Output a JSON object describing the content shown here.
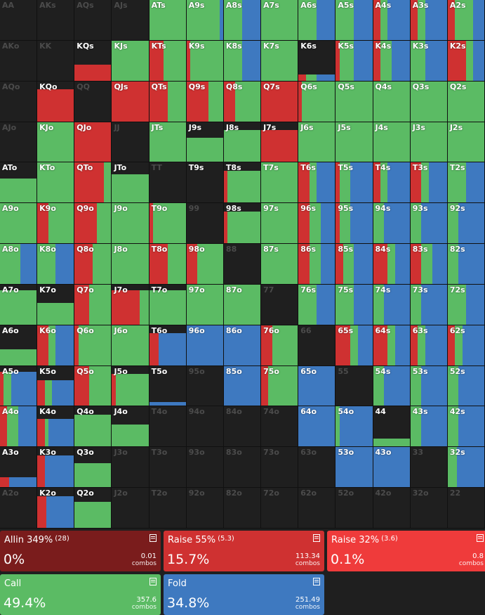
{
  "colors": {
    "allin": "#7a1c1c",
    "raise_big": "#cf3131",
    "raise_small": "#ef3b3b",
    "call": "#5bbb64",
    "fold": "#3e79c0",
    "empty": "#1f1f1f"
  },
  "hands": [
    [
      "AA",
      "AKs",
      "AQs",
      "AJs",
      "ATs",
      "A9s",
      "A8s",
      "A7s",
      "A6s",
      "A5s",
      "A4s",
      "A3s",
      "A2s"
    ],
    [
      "AKo",
      "KK",
      "KQs",
      "KJs",
      "KTs",
      "K9s",
      "K8s",
      "K7s",
      "K6s",
      "K5s",
      "K4s",
      "K3s",
      "K2s"
    ],
    [
      "AQo",
      "KQo",
      "QQ",
      "QJs",
      "QTs",
      "Q9s",
      "Q8s",
      "Q7s",
      "Q6s",
      "Q5s",
      "Q4s",
      "Q3s",
      "Q2s"
    ],
    [
      "AJo",
      "KJo",
      "QJo",
      "JJ",
      "JTs",
      "J9s",
      "J8s",
      "J7s",
      "J6s",
      "J5s",
      "J4s",
      "J3s",
      "J2s"
    ],
    [
      "ATo",
      "KTo",
      "QTo",
      "JTo",
      "TT",
      "T9s",
      "T8s",
      "T7s",
      "T6s",
      "T5s",
      "T4s",
      "T3s",
      "T2s"
    ],
    [
      "A9o",
      "K9o",
      "Q9o",
      "J9o",
      "T9o",
      "99",
      "98s",
      "97s",
      "96s",
      "95s",
      "94s",
      "93s",
      "92s"
    ],
    [
      "A8o",
      "K8o",
      "Q8o",
      "J8o",
      "T8o",
      "98o",
      "88",
      "87s",
      "86s",
      "85s",
      "84s",
      "83s",
      "82s"
    ],
    [
      "A7o",
      "K7o",
      "Q7o",
      "J7o",
      "T7o",
      "97o",
      "87o",
      "77",
      "76s",
      "75s",
      "74s",
      "73s",
      "72s"
    ],
    [
      "A6o",
      "K6o",
      "Q6o",
      "J6o",
      "T6o",
      "96o",
      "86o",
      "76o",
      "66",
      "65s",
      "64s",
      "63s",
      "62s"
    ],
    [
      "A5o",
      "K5o",
      "Q5o",
      "J5o",
      "T5o",
      "95o",
      "85o",
      "75o",
      "65o",
      "55",
      "54s",
      "53s",
      "52s"
    ],
    [
      "A4o",
      "K4o",
      "Q4o",
      "J4o",
      "T4o",
      "94o",
      "84o",
      "74o",
      "64o",
      "54o",
      "44",
      "43s",
      "42s"
    ],
    [
      "A3o",
      "K3o",
      "Q3o",
      "J3o",
      "T3o",
      "93o",
      "83o",
      "73o",
      "63o",
      "53o",
      "43o",
      "33",
      "32s"
    ],
    [
      "A2o",
      "K2o",
      "Q2o",
      "J2o",
      "T2o",
      "92o",
      "82o",
      "72o",
      "62o",
      "52o",
      "42o",
      "32o",
      "22"
    ]
  ],
  "strategy": {
    "ATs": {
      "call": 1.0
    },
    "A9s": {
      "call": 0.9,
      "fold": 0.1
    },
    "A8s": {
      "call": 0.5,
      "fold": 0.5
    },
    "A7s": {
      "call": 1.0
    },
    "A6s": {
      "call": 0.5,
      "fold": 0.5
    },
    "A5s": {
      "call": 0.5,
      "fold": 0.5
    },
    "A4s": {
      "raise_big": 0.2,
      "call": 0.2,
      "fold": 0.6
    },
    "A3s": {
      "raise_big": 0.2,
      "call": 0.2,
      "fold": 0.6
    },
    "A2s": {
      "raise_big": 0.2,
      "call": 0.5,
      "fold": 0.3
    },
    "KQs": {
      "fill": 0.4,
      "raise_big": 1.0
    },
    "KJs": {
      "call": 1.0
    },
    "KTs": {
      "raise_big": 0.4,
      "call": 0.6
    },
    "K9s": {
      "raise_big": 0.1,
      "call": 0.9
    },
    "K8s": {
      "call": 0.5,
      "fold": 0.5
    },
    "K7s": {
      "call": 1.0
    },
    "K6s": {
      "fill": 0.15,
      "raise_big": 0.2,
      "call": 0.3,
      "fold": 0.5
    },
    "K5s": {
      "raise_big": 0.1,
      "call": 0.4,
      "fold": 0.5
    },
    "K4s": {
      "raise_big": 0.2,
      "call": 0.3,
      "fold": 0.5
    },
    "K3s": {
      "call": 0.4,
      "fold": 0.6
    },
    "K2s": {
      "raise_big": 0.5,
      "call": 0.2,
      "fold": 0.3
    },
    "KQo": {
      "fill": 0.8,
      "raise_big": 1.0
    },
    "QJs": {
      "raise_big": 1.0
    },
    "QTs": {
      "raise_big": 0.5,
      "call": 0.5
    },
    "Q9s": {
      "raise_big": 0.6,
      "call": 0.4
    },
    "Q8s": {
      "raise_big": 0.3,
      "call": 0.7
    },
    "Q7s": {
      "raise_big": 1.0
    },
    "Q6s": {
      "raise_big": 0.1,
      "call": 0.9
    },
    "Q5s": {
      "call": 1.0
    },
    "Q4s": {
      "call": 1.0
    },
    "Q3s": {
      "call": 1.0
    },
    "Q2s": {
      "call": 1.0
    },
    "KJo": {
      "call": 1.0
    },
    "QJo": {
      "raise_big": 1.0
    },
    "JTs": {
      "call": 1.0
    },
    "J9s": {
      "fill": 0.6,
      "call": 1.0
    },
    "J8s": {
      "fill": 0.8,
      "call": 1.0
    },
    "J7s": {
      "fill": 0.8,
      "raise_big": 1.0
    },
    "J6s": {
      "call": 1.0
    },
    "J5s": {
      "call": 1.0
    },
    "J4s": {
      "call": 1.0
    },
    "J3s": {
      "call": 1.0
    },
    "J2s": {
      "call": 1.0
    },
    "ATo": {
      "fill": 0.6,
      "call": 1.0
    },
    "KTo": {
      "call": 1.0
    },
    "QTo": {
      "raise_big": 0.8,
      "call": 0.2
    },
    "JTo": {
      "fill": 0.7,
      "call": 1.0
    },
    "T9s": {
      "fill": 0.0,
      "call": 1.0
    },
    "T8s": {
      "fill": 0.8,
      "raise_big": 0.1,
      "call": 0.9
    },
    "T7s": {
      "call": 1.0
    },
    "T6s": {
      "raise_big": 0.3,
      "call": 0.2,
      "fold": 0.5
    },
    "T5s": {
      "raise_big": 0.1,
      "call": 0.3,
      "fold": 0.6
    },
    "T4s": {
      "raise_big": 0.2,
      "call": 0.2,
      "fold": 0.6
    },
    "T3s": {
      "raise_big": 0.3,
      "call": 0.2,
      "fold": 0.5
    },
    "T2s": {
      "call": 0.5,
      "fold": 0.5
    },
    "A9o": {
      "call": 1.0
    },
    "K9o": {
      "raise_big": 0.3,
      "call": 0.7
    },
    "Q9o": {
      "raise_big": 0.6,
      "call": 0.4
    },
    "J9o": {
      "call": 1.0
    },
    "T9o": {
      "raise_big": 0.1,
      "call": 0.9
    },
    "98s": {
      "fill": 0.8,
      "raise_big": 0.1,
      "call": 0.9
    },
    "97s": {
      "call": 1.0
    },
    "96s": {
      "raise_big": 0.3,
      "call": 0.3,
      "fold": 0.4
    },
    "95s": {
      "raise_big": 0.1,
      "call": 0.3,
      "fold": 0.6
    },
    "94s": {
      "call": 0.3,
      "fold": 0.7
    },
    "93s": {
      "call": 0.3,
      "fold": 0.7
    },
    "92s": {
      "call": 0.3,
      "fold": 0.7
    },
    "A8o": {
      "call": 0.55,
      "fold": 0.45
    },
    "K8o": {
      "call": 0.5,
      "fold": 0.5
    },
    "Q8o": {
      "raise_big": 0.5,
      "call": 0.5
    },
    "J8o": {
      "call": 1.0
    },
    "T8o": {
      "raise_big": 0.5,
      "call": 0.5
    },
    "98o": {
      "raise_big": 0.3,
      "call": 0.7
    },
    "87s": {
      "call": 1.0
    },
    "86s": {
      "raise_big": 0.3,
      "call": 0.3,
      "fold": 0.4
    },
    "85s": {
      "raise_big": 0.2,
      "call": 0.3,
      "fold": 0.5
    },
    "84s": {
      "raise_big": 0.4,
      "call": 0.2,
      "fold": 0.4
    },
    "83s": {
      "raise_big": 0.3,
      "call": 0.3,
      "fold": 0.4
    },
    "82s": {
      "call": 0.3,
      "fold": 0.7
    },
    "A7o": {
      "fill": 0.85,
      "call": 1.0
    },
    "K7o": {
      "fill": 0.55,
      "call": 1.0
    },
    "Q7o": {
      "raise_big": 0.4,
      "call": 0.6
    },
    "J7o": {
      "fill": 0.85,
      "raise_big": 0.75,
      "call": 0.25
    },
    "T7o": {
      "fill": 0.85,
      "call": 1.0
    },
    "97o": {
      "call": 1.0
    },
    "87o": {
      "call": 1.0
    },
    "76s": {
      "call": 0.5,
      "fold": 0.5
    },
    "75s": {
      "call": 0.5,
      "fold": 0.5
    },
    "74s": {
      "call": 0.3,
      "fold": 0.7
    },
    "73s": {
      "call": 0.3,
      "fold": 0.7
    },
    "72s": {
      "call": 0.5,
      "fold": 0.5
    },
    "A6o": {
      "fill": 0.4,
      "call": 1.0
    },
    "K6o": {
      "raise_big": 0.3,
      "call": 0.2,
      "fold": 0.5
    },
    "Q6o": {
      "raise_big": 0.1,
      "call": 0.9
    },
    "J6o": {
      "call": 1.0
    },
    "T6o": {
      "fill": 0.8,
      "raise_big": 0.25,
      "fold": 0.75
    },
    "96o": {
      "fold": 1.0
    },
    "86o": {
      "fold": 1.0
    },
    "76o": {
      "raise_big": 0.3,
      "call": 0.7
    },
    "65s": {
      "raise_big": 0.4,
      "call": 0.2,
      "fold": 0.4
    },
    "64s": {
      "raise_big": 0.4,
      "call": 0.2,
      "fold": 0.4
    },
    "63s": {
      "raise_big": 0.2,
      "call": 0.2,
      "fold": 0.6
    },
    "62s": {
      "raise_big": 0.2,
      "call": 0.2,
      "fold": 0.6
    },
    "A5o": {
      "fill": 0.85,
      "raise_big": 0.1,
      "call": 0.2,
      "fold": 0.7
    },
    "K5o": {
      "fill": 0.65,
      "raise_big": 0.2,
      "call": 0.2,
      "fold": 0.6
    },
    "Q5o": {
      "raise_big": 0.4,
      "call": 0.6
    },
    "J5o": {
      "fill": 0.8,
      "raise_big": 0.1,
      "call": 0.9
    },
    "T5o": {
      "fill": 0.1,
      "fold": 1.0
    },
    "85o": {
      "fold": 1.0
    },
    "75o": {
      "raise_big": 0.2,
      "call": 0.8
    },
    "65o": {
      "fold": 1.0
    },
    "54s": {
      "call": 0.3,
      "fold": 0.7
    },
    "53s": {
      "call": 0.3,
      "fold": 0.7
    },
    "52s": {
      "call": 0.3,
      "fold": 0.7
    },
    "A4o": {
      "raise_big": 0.2,
      "call": 0.3,
      "fold": 0.5
    },
    "K4o": {
      "fill": 0.7,
      "raise_big": 0.2,
      "call": 0.1,
      "fold": 0.7
    },
    "Q4o": {
      "fill": 0.8,
      "call": 1.0
    },
    "J4o": {
      "fill": 0.55,
      "call": 1.0
    },
    "64o": {
      "fold": 1.0
    },
    "54o": {
      "call": 0.1,
      "fold": 0.9
    },
    "44": {
      "fill": 0.2,
      "call": 1.0
    },
    "43s": {
      "call": 0.3,
      "fold": 0.7
    },
    "42s": {
      "call": 0.3,
      "fold": 0.7
    },
    "A3o": {
      "fill": 0.25,
      "raise_big": 0.25,
      "fold": 0.75
    },
    "K3o": {
      "fill": 0.8,
      "raise_big": 0.2,
      "fold": 0.8
    },
    "Q3o": {
      "fill": 0.6,
      "call": 1.0
    },
    "53o": {
      "fold": 1.0
    },
    "43o": {
      "fold": 1.0
    },
    "32s": {
      "call": 0.25,
      "fold": 0.75
    },
    "K2o": {
      "fill": 0.8,
      "raise_big": 0.25,
      "fold": 0.75
    },
    "Q2o": {
      "fill": 0.65,
      "call": 1.0
    }
  },
  "actions": [
    {
      "id": "allin",
      "title": "Allin 349%",
      "sub": "(28)",
      "pct": "0%",
      "combos": "0.01",
      "unit": "combos",
      "color": "#7a1c1c"
    },
    {
      "id": "raise_big",
      "title": "Raise 55%",
      "sub": "(5.3)",
      "pct": "15.7%",
      "combos": "113.34",
      "unit": "combos",
      "color": "#cf3131"
    },
    {
      "id": "raise_small",
      "title": "Raise 32%",
      "sub": "(3.6)",
      "pct": "0.1%",
      "combos": "0.8",
      "unit": "combos",
      "color": "#ef3b3b"
    },
    {
      "id": "call",
      "title": "Call",
      "sub": "",
      "pct": "49.4%",
      "combos": "357.6",
      "unit": "combos",
      "color": "#5bbb64"
    },
    {
      "id": "fold",
      "title": "Fold",
      "sub": "",
      "pct": "34.8%",
      "combos": "251.49",
      "unit": "combos",
      "color": "#3e79c0"
    }
  ]
}
